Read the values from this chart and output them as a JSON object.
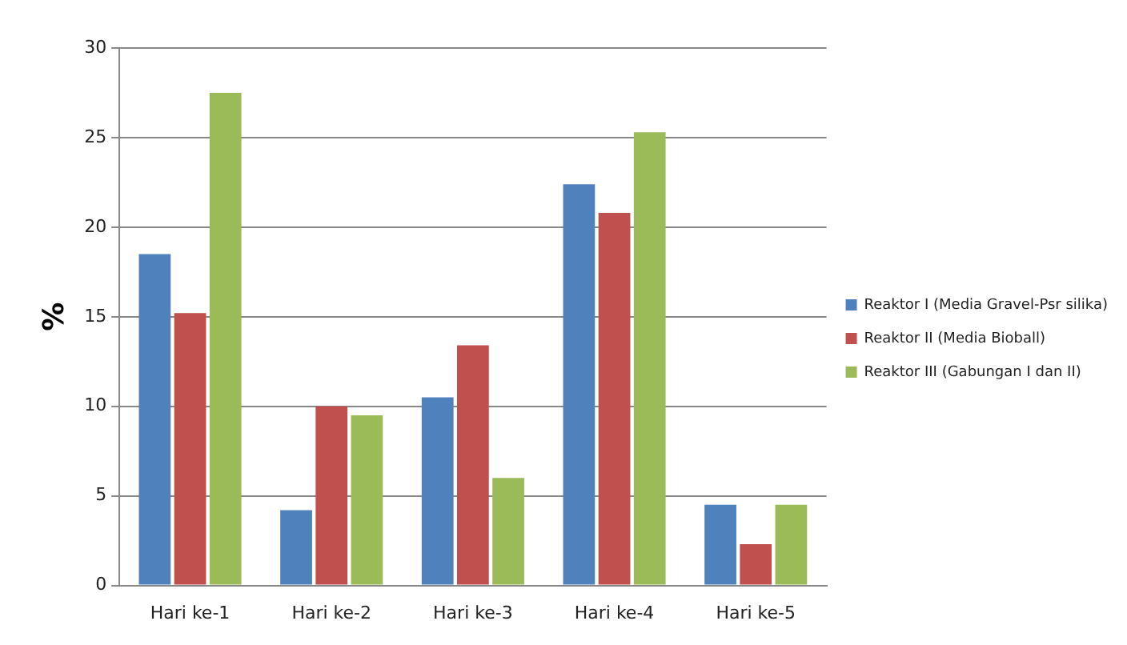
{
  "chart_data": {
    "type": "bar",
    "ylabel": "%",
    "categories": [
      "Hari ke-1",
      "Hari ke-2",
      "Hari ke-3",
      "Hari ke-4",
      "Hari ke-5"
    ],
    "series": [
      {
        "name": "Reaktor I (Media Gravel-Psr silika)",
        "color": "#4f81bd",
        "values": [
          18.5,
          4.2,
          10.5,
          22.4,
          4.5
        ]
      },
      {
        "name": "Reaktor II (Media Bioball)",
        "color": "#c0504d",
        "values": [
          15.2,
          10,
          13.4,
          20.8,
          2.3
        ]
      },
      {
        "name": "Reaktor III (Gabungan I dan II)",
        "color": "#9bbb59",
        "values": [
          27.5,
          9.5,
          6,
          25.3,
          4.5
        ]
      }
    ],
    "ylim": [
      0,
      30
    ],
    "yticks": [
      0,
      5,
      10,
      15,
      20,
      25,
      30
    ],
    "grid": "y",
    "legend": "right"
  }
}
